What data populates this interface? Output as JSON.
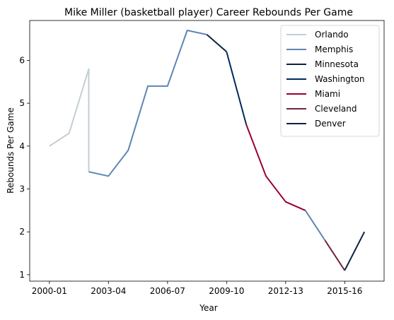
{
  "chart_data": {
    "type": "line",
    "title": "Mike Miller (basketball player) Career Rebounds Per Game",
    "xlabel": "Year",
    "ylabel": "Rebounds Per Game",
    "x_tick_labels": [
      "2000-01",
      "2003-04",
      "2006-07",
      "2009-10",
      "2012-13",
      "2015-16"
    ],
    "y_ticks": [
      1,
      2,
      3,
      4,
      5,
      6
    ],
    "xlim": [
      -1,
      17
    ],
    "ylim": [
      0.85,
      6.93
    ],
    "grid": false,
    "legend_position": "top-right",
    "x_index_note": "season index, 0 = 2000-01",
    "series": [
      {
        "name": "Orlando",
        "color": "#c4ced4",
        "x": [
          0,
          1,
          2,
          2
        ],
        "y": [
          4.0,
          4.3,
          5.8,
          3.4
        ]
      },
      {
        "name": "Memphis",
        "color": "#5d86b5",
        "x": [
          2,
          3,
          4,
          5,
          6,
          7,
          8
        ],
        "y": [
          3.4,
          3.3,
          3.9,
          5.4,
          5.4,
          6.7,
          6.6
        ]
      },
      {
        "name": "Minnesota",
        "color": "#0c2340",
        "x": [
          8,
          9
        ],
        "y": [
          6.6,
          6.2
        ]
      },
      {
        "name": "Washington",
        "color": "#002b5c",
        "x": [
          9,
          10
        ],
        "y": [
          6.2,
          4.5
        ]
      },
      {
        "name": "Miami",
        "color": "#98002e",
        "x": [
          10,
          11,
          12,
          13
        ],
        "y": [
          4.5,
          3.3,
          2.7,
          2.5
        ]
      },
      {
        "name": "Memphis",
        "color": "#5d86b5",
        "x": [
          13,
          14
        ],
        "y": [
          2.5,
          1.8
        ],
        "legend": false
      },
      {
        "name": "Cleveland",
        "color": "#6f263d",
        "x": [
          14,
          15
        ],
        "y": [
          1.8,
          1.1
        ]
      },
      {
        "name": "Denver",
        "color": "#0e2240",
        "x": [
          15,
          16
        ],
        "y": [
          1.1,
          2.0
        ]
      }
    ]
  }
}
